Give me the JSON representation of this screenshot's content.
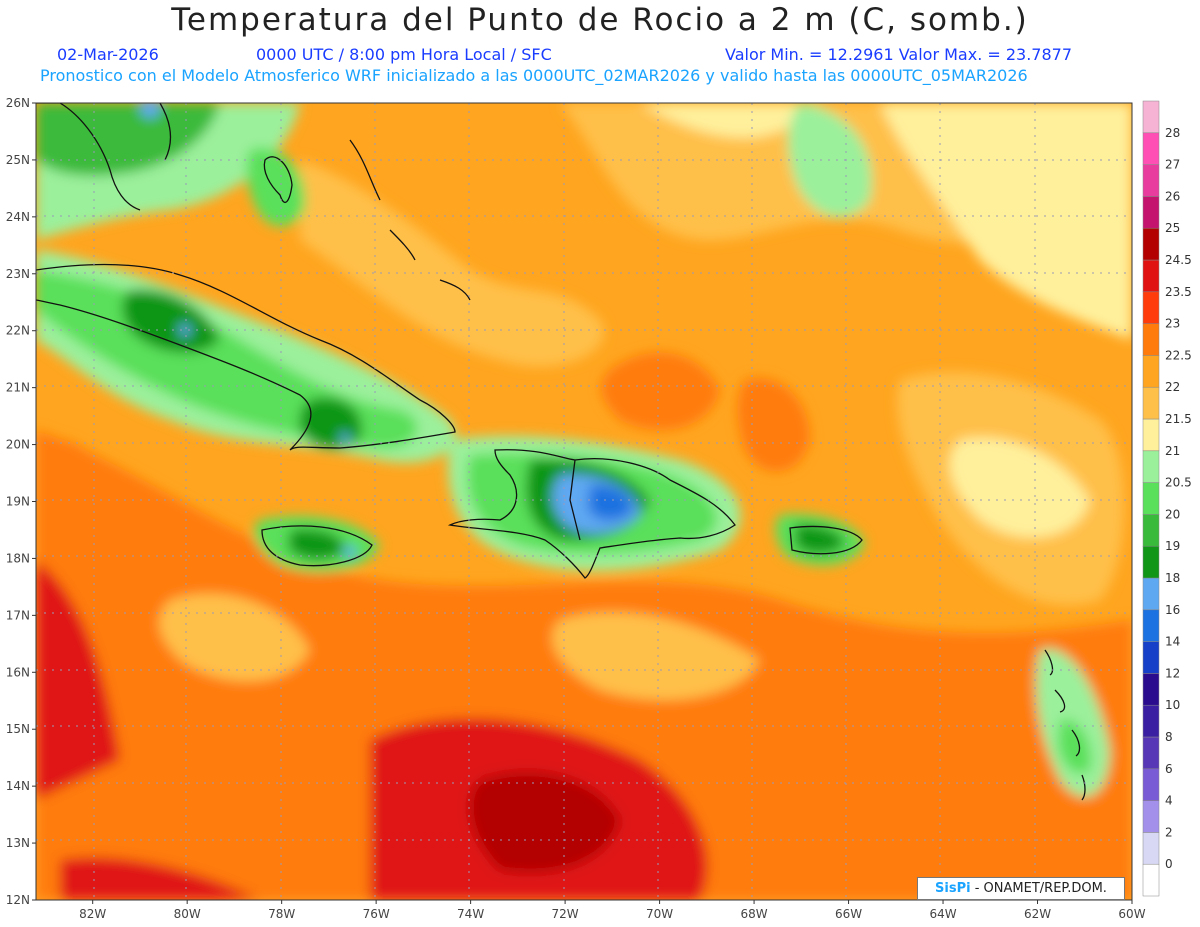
{
  "header": {
    "title": "Temperatura del Punto de Rocio a 2 m (C, somb.)",
    "date": "02-Mar-2026",
    "time": "0000 UTC / 8:00 pm Hora Local / SFC",
    "min_max": "Valor Min. = 12.2961  Valor Max. = 23.7877",
    "model_line": "Pronostico con el Modelo Atmosferico WRF inicializado a las 0000UTC_02MAR2026 y valido hasta las  0000UTC_05MAR2026"
  },
  "map": {
    "lat_labels": [
      "26N",
      "25N",
      "24N",
      "23N",
      "22N",
      "21N",
      "20N",
      "19N",
      "18N",
      "17N",
      "16N",
      "15N",
      "14N",
      "13N",
      "12N"
    ],
    "lon_labels": [
      "82W",
      "80W",
      "78W",
      "76W",
      "74W",
      "72W",
      "70W",
      "68W",
      "66W",
      "64W",
      "62W",
      "60W"
    ],
    "lat_range": [
      12,
      26
    ],
    "lon_range": [
      -83.2,
      -60
    ],
    "grid": "dotted"
  },
  "legend": {
    "levels": [
      "0",
      "2",
      "4",
      "6",
      "8",
      "10",
      "12",
      "14",
      "16",
      "18",
      "19",
      "20",
      "20.5",
      "21",
      "21.5",
      "22",
      "22.5",
      "23",
      "23.5",
      "24.5",
      "25",
      "26",
      "27",
      "28"
    ],
    "colors": [
      "#ffffff",
      "#d8d8f4",
      "#a390ea",
      "#7a5bd6",
      "#5737b5",
      "#3a1fa3",
      "#2a0d8e",
      "#1740c8",
      "#1c72e0",
      "#5ea8f2",
      "#119618",
      "#3aba3a",
      "#5ae05a",
      "#9bf09b",
      "#fff09c",
      "#ffc04a",
      "#ffa51f",
      "#ff7b0c",
      "#ff3d0c",
      "#e01212",
      "#b30000",
      "#c4136f",
      "#e83c9e",
      "#ff4fb5",
      "#f7b3d4"
    ]
  },
  "badge": {
    "brand": "SisPi",
    "text": "- ONAMET/REP.DOM."
  }
}
